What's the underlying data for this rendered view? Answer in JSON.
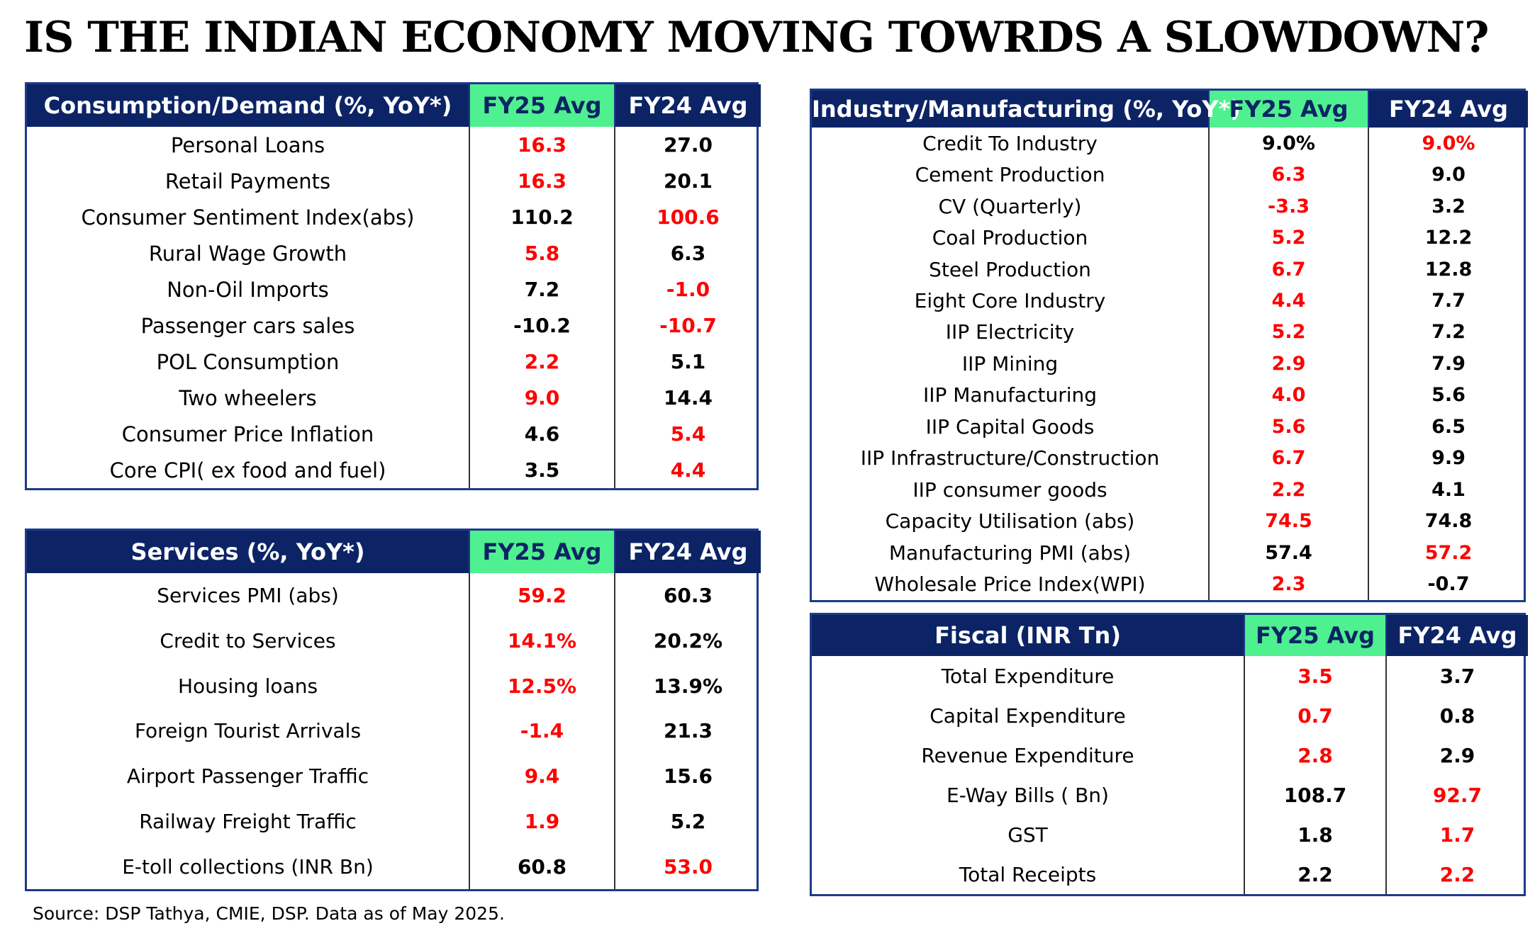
{
  "title": "IS THE INDIAN ECONOMY MOVING TOWRDS A SLOWDOWN?",
  "colors": {
    "header_bg": "#0c2466",
    "fy25_header_bg": "#4ff08f",
    "red_value": "#ff0000",
    "black_value": "#000000",
    "border": "#1d3a8a"
  },
  "consumption": {
    "header": "Consumption/Demand (%, YoY*)",
    "col1": "FY25 Avg",
    "col2": "FY24 Avg",
    "rows": [
      {
        "label": "Personal Loans",
        "fy25": "16.3",
        "fy25_color": "red",
        "fy24": "27.0",
        "fy24_color": "black"
      },
      {
        "label": "Retail Payments",
        "fy25": "16.3",
        "fy25_color": "red",
        "fy24": "20.1",
        "fy24_color": "black"
      },
      {
        "label": "Consumer Sentiment Index(abs)",
        "fy25": "110.2",
        "fy25_color": "black",
        "fy24": "100.6",
        "fy24_color": "red"
      },
      {
        "label": "Rural Wage Growth",
        "fy25": "5.8",
        "fy25_color": "red",
        "fy24": "6.3",
        "fy24_color": "black"
      },
      {
        "label": "Non-Oil Imports",
        "fy25": "7.2",
        "fy25_color": "black",
        "fy24": "-1.0",
        "fy24_color": "red"
      },
      {
        "label": "Passenger cars sales",
        "fy25": "-10.2",
        "fy25_color": "black",
        "fy24": "-10.7",
        "fy24_color": "red"
      },
      {
        "label": "POL Consumption",
        "fy25": "2.2",
        "fy25_color": "red",
        "fy24": "5.1",
        "fy24_color": "black"
      },
      {
        "label": "Two wheelers",
        "fy25": "9.0",
        "fy25_color": "red",
        "fy24": "14.4",
        "fy24_color": "black"
      },
      {
        "label": "Consumer Price Inflation",
        "fy25": "4.6",
        "fy25_color": "black",
        "fy24": "5.4",
        "fy24_color": "red"
      },
      {
        "label": "Core CPI( ex food and fuel)",
        "fy25": "3.5",
        "fy25_color": "black",
        "fy24": "4.4",
        "fy24_color": "red"
      }
    ]
  },
  "services": {
    "header": "Services (%, YoY*)",
    "col1": "FY25 Avg",
    "col2": "FY24 Avg",
    "rows": [
      {
        "label": "Services PMI (abs)",
        "fy25": "59.2",
        "fy25_color": "red",
        "fy24": "60.3",
        "fy24_color": "black"
      },
      {
        "label": "Credit to Services",
        "fy25": "14.1%",
        "fy25_color": "red",
        "fy24": "20.2%",
        "fy24_color": "black"
      },
      {
        "label": "Housing loans",
        "fy25": "12.5%",
        "fy25_color": "red",
        "fy24": "13.9%",
        "fy24_color": "black"
      },
      {
        "label": "Foreign Tourist Arrivals",
        "fy25": "-1.4",
        "fy25_color": "red",
        "fy24": "21.3",
        "fy24_color": "black"
      },
      {
        "label": "Airport Passenger Traffic",
        "fy25": "9.4",
        "fy25_color": "red",
        "fy24": "15.6",
        "fy24_color": "black"
      },
      {
        "label": "Railway Freight Traffic",
        "fy25": "1.9",
        "fy25_color": "red",
        "fy24": "5.2",
        "fy24_color": "black"
      },
      {
        "label": "E-toll collections (INR Bn)",
        "fy25": "60.8",
        "fy25_color": "black",
        "fy24": "53.0",
        "fy24_color": "red"
      }
    ]
  },
  "industry": {
    "header": "Industry/Manufacturing (%, YoY*)",
    "col1": "FY25 Avg",
    "col2": "FY24 Avg",
    "rows": [
      {
        "label": "Credit To Industry",
        "fy25": "9.0%",
        "fy25_color": "black",
        "fy24": "9.0%",
        "fy24_color": "red"
      },
      {
        "label": "Cement Production",
        "fy25": "6.3",
        "fy25_color": "red",
        "fy24": "9.0",
        "fy24_color": "black"
      },
      {
        "label": "CV (Quarterly)",
        "fy25": "-3.3",
        "fy25_color": "red",
        "fy24": "3.2",
        "fy24_color": "black"
      },
      {
        "label": "Coal Production",
        "fy25": "5.2",
        "fy25_color": "red",
        "fy24": "12.2",
        "fy24_color": "black"
      },
      {
        "label": "Steel Production",
        "fy25": "6.7",
        "fy25_color": "red",
        "fy24": "12.8",
        "fy24_color": "black"
      },
      {
        "label": "Eight Core Industry",
        "fy25": "4.4",
        "fy25_color": "red",
        "fy24": "7.7",
        "fy24_color": "black"
      },
      {
        "label": "IIP Electricity",
        "fy25": "5.2",
        "fy25_color": "red",
        "fy24": "7.2",
        "fy24_color": "black"
      },
      {
        "label": "IIP Mining",
        "fy25": "2.9",
        "fy25_color": "red",
        "fy24": "7.9",
        "fy24_color": "black"
      },
      {
        "label": "IIP Manufacturing",
        "fy25": "4.0",
        "fy25_color": "red",
        "fy24": "5.6",
        "fy24_color": "black"
      },
      {
        "label": "IIP Capital Goods",
        "fy25": "5.6",
        "fy25_color": "red",
        "fy24": "6.5",
        "fy24_color": "black"
      },
      {
        "label": "IIP Infrastructure/Construction",
        "fy25": "6.7",
        "fy25_color": "red",
        "fy24": "9.9",
        "fy24_color": "black"
      },
      {
        "label": "IIP consumer goods",
        "fy25": "2.2",
        "fy25_color": "red",
        "fy24": "4.1",
        "fy24_color": "black"
      },
      {
        "label": "Capacity Utilisation (abs)",
        "fy25": "74.5",
        "fy25_color": "red",
        "fy24": "74.8",
        "fy24_color": "black"
      },
      {
        "label": "Manufacturing PMI (abs)",
        "fy25": "57.4",
        "fy25_color": "black",
        "fy24": "57.2",
        "fy24_color": "red"
      },
      {
        "label": "Wholesale Price Index(WPI)",
        "fy25": "2.3",
        "fy25_color": "red",
        "fy24": "-0.7",
        "fy24_color": "black"
      }
    ]
  },
  "fiscal": {
    "header": "Fiscal  (INR Tn)",
    "col1": "FY25 Avg",
    "col2": "FY24 Avg",
    "rows": [
      {
        "label": "Total Expenditure",
        "fy25": "3.5",
        "fy25_color": "red",
        "fy24": "3.7",
        "fy24_color": "black"
      },
      {
        "label": "Capital Expenditure",
        "fy25": "0.7",
        "fy25_color": "red",
        "fy24": "0.8",
        "fy24_color": "black"
      },
      {
        "label": "Revenue Expenditure",
        "fy25": "2.8",
        "fy25_color": "red",
        "fy24": "2.9",
        "fy24_color": "black"
      },
      {
        "label": "E-Way Bills ( Bn)",
        "fy25": "108.7",
        "fy25_color": "black",
        "fy24": "92.7",
        "fy24_color": "red"
      },
      {
        "label": "GST",
        "fy25": "1.8",
        "fy25_color": "black",
        "fy24": "1.7",
        "fy24_color": "red"
      },
      {
        "label": "Total Receipts",
        "fy25": "2.2",
        "fy25_color": "black",
        "fy24": "2.2",
        "fy24_color": "red"
      }
    ]
  },
  "source": "Source: DSP Tathya, CMIE, DSP. Data as of May 2025."
}
